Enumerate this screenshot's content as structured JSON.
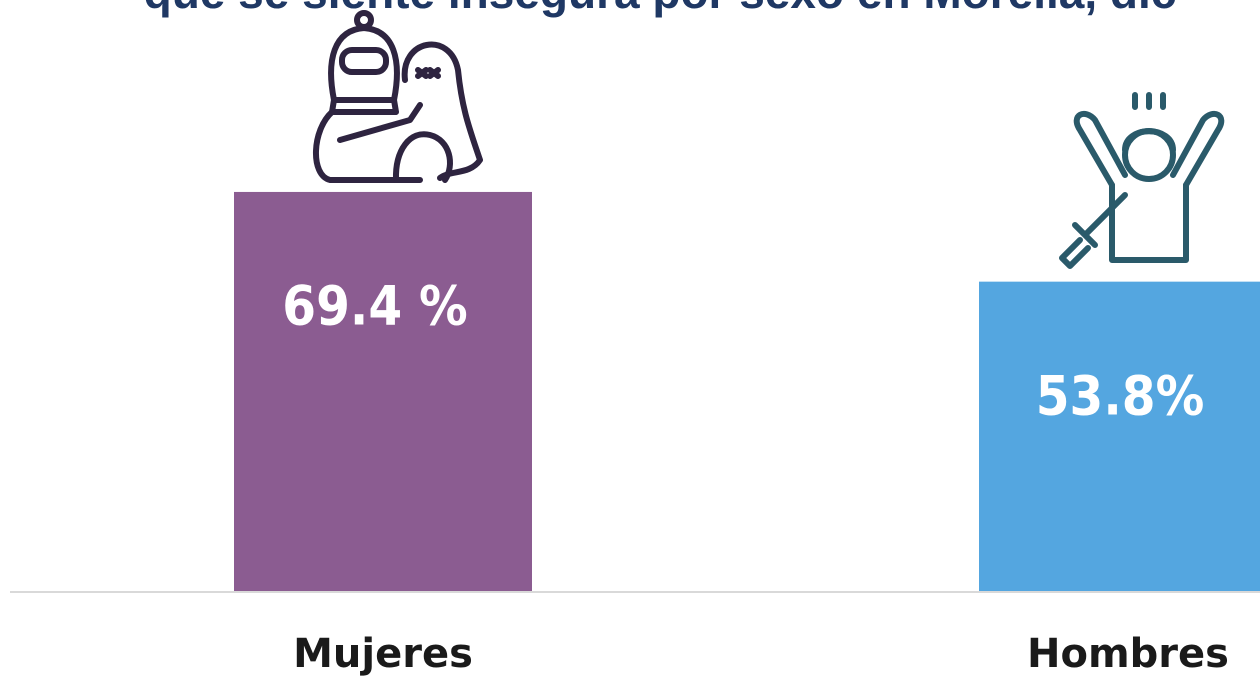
{
  "chart_data": {
    "type": "bar",
    "title": "que se siente insegura por sexo en Morelia, dic",
    "categories": [
      "Mujeres",
      "Hombres"
    ],
    "values": [
      69.4,
      53.8
    ],
    "value_labels": [
      "69.4 %",
      "53.8%"
    ],
    "colors": [
      "#8b5c91",
      "#54a6e0"
    ],
    "ylim": [
      0,
      100
    ]
  }
}
